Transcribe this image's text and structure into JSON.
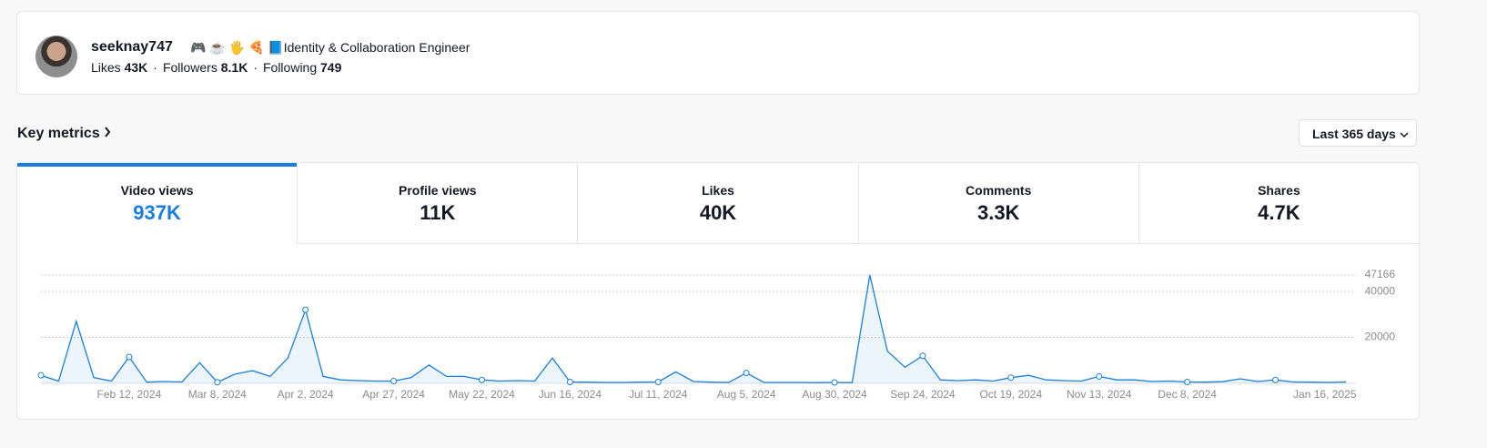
{
  "profile": {
    "username": "seeknay747",
    "bio": "🎮 ☕ 🖐 🍕 📘Identity & Collaboration Engineer",
    "stats": [
      {
        "label": "Likes",
        "value": "43K"
      },
      {
        "label": "Followers",
        "value": "8.1K"
      },
      {
        "label": "Following",
        "value": "749"
      }
    ]
  },
  "key_metrics": {
    "title": "Key metrics",
    "range": "Last 365 days"
  },
  "tabs": [
    {
      "label": "Video views",
      "value": "937K",
      "active": true
    },
    {
      "label": "Profile views",
      "value": "11K"
    },
    {
      "label": "Likes",
      "value": "40K"
    },
    {
      "label": "Comments",
      "value": "3.3K"
    },
    {
      "label": "Shares",
      "value": "4.7K"
    }
  ],
  "chart_data": {
    "type": "line",
    "color": "#1a7fdc",
    "grid": true,
    "x": [
      "Jan 18, 2024",
      "Jan 23, 2024",
      "Jan 28, 2024",
      "Feb 2, 2024",
      "Feb 7, 2024",
      "Feb 12, 2024",
      "Feb 17, 2024",
      "Feb 22, 2024",
      "Feb 27, 2024",
      "Mar 3, 2024",
      "Mar 8, 2024",
      "Mar 13, 2024",
      "Mar 18, 2024",
      "Mar 23, 2024",
      "Mar 28, 2024",
      "Apr 2, 2024",
      "Apr 7, 2024",
      "Apr 12, 2024",
      "Apr 17, 2024",
      "Apr 22, 2024",
      "Apr 27, 2024",
      "May 2, 2024",
      "May 7, 2024",
      "May 12, 2024",
      "May 17, 2024",
      "May 22, 2024",
      "May 27, 2024",
      "Jun 1, 2024",
      "Jun 6, 2024",
      "Jun 11, 2024",
      "Jun 16, 2024",
      "Jun 21, 2024",
      "Jun 26, 2024",
      "Jul 1, 2024",
      "Jul 6, 2024",
      "Jul 11, 2024",
      "Jul 16, 2024",
      "Jul 21, 2024",
      "Jul 26, 2024",
      "Jul 31, 2024",
      "Aug 5, 2024",
      "Aug 10, 2024",
      "Aug 15, 2024",
      "Aug 20, 2024",
      "Aug 25, 2024",
      "Aug 30, 2024",
      "Sep 4, 2024",
      "Sep 9, 2024",
      "Sep 14, 2024",
      "Sep 19, 2024",
      "Sep 24, 2024",
      "Sep 29, 2024",
      "Oct 4, 2024",
      "Oct 9, 2024",
      "Oct 14, 2024",
      "Oct 19, 2024",
      "Oct 24, 2024",
      "Oct 29, 2024",
      "Nov 3, 2024",
      "Nov 8, 2024",
      "Nov 13, 2024",
      "Nov 18, 2024",
      "Nov 23, 2024",
      "Nov 28, 2024",
      "Dec 3, 2024",
      "Dec 8, 2024",
      "Dec 13, 2024",
      "Dec 18, 2024",
      "Dec 23, 2024",
      "Dec 28, 2024",
      "Jan 2, 2025",
      "Jan 7, 2025",
      "Jan 12, 2025",
      "Jan 17, 2025",
      "Jan 22, 2025"
    ],
    "values": [
      3500,
      1000,
      27000,
      2500,
      1000,
      11500,
      500,
      800,
      600,
      9000,
      500,
      4000,
      5500,
      3000,
      11000,
      32000,
      3000,
      1500,
      1200,
      1000,
      1000,
      2500,
      8000,
      3000,
      3000,
      1500,
      1000,
      1200,
      1000,
      11000,
      600,
      500,
      400,
      400,
      500,
      600,
      5000,
      800,
      500,
      400,
      4500,
      400,
      400,
      400,
      300,
      400,
      300,
      47166,
      14000,
      7000,
      12000,
      1500,
      1200,
      1500,
      1000,
      2500,
      3500,
      1500,
      1200,
      1000,
      3000,
      1500,
      1500,
      800,
      1000,
      600,
      500,
      700,
      2000,
      800,
      1500,
      600,
      500,
      400,
      600
    ],
    "ylim": [
      0,
      47166
    ],
    "yticks": [
      20000,
      40000,
      47166
    ],
    "xticks": [
      "Feb 12, 2024",
      "Mar 8, 2024",
      "Apr 2, 2024",
      "Apr 27, 2024",
      "May 22, 2024",
      "Jun 16, 2024",
      "Jul 11, 2024",
      "Aug 5, 2024",
      "Aug 30, 2024",
      "Sep 24, 2024",
      "Oct 19, 2024",
      "Nov 13, 2024",
      "Dec 8, 2024",
      "Jan 16, 2025"
    ]
  }
}
